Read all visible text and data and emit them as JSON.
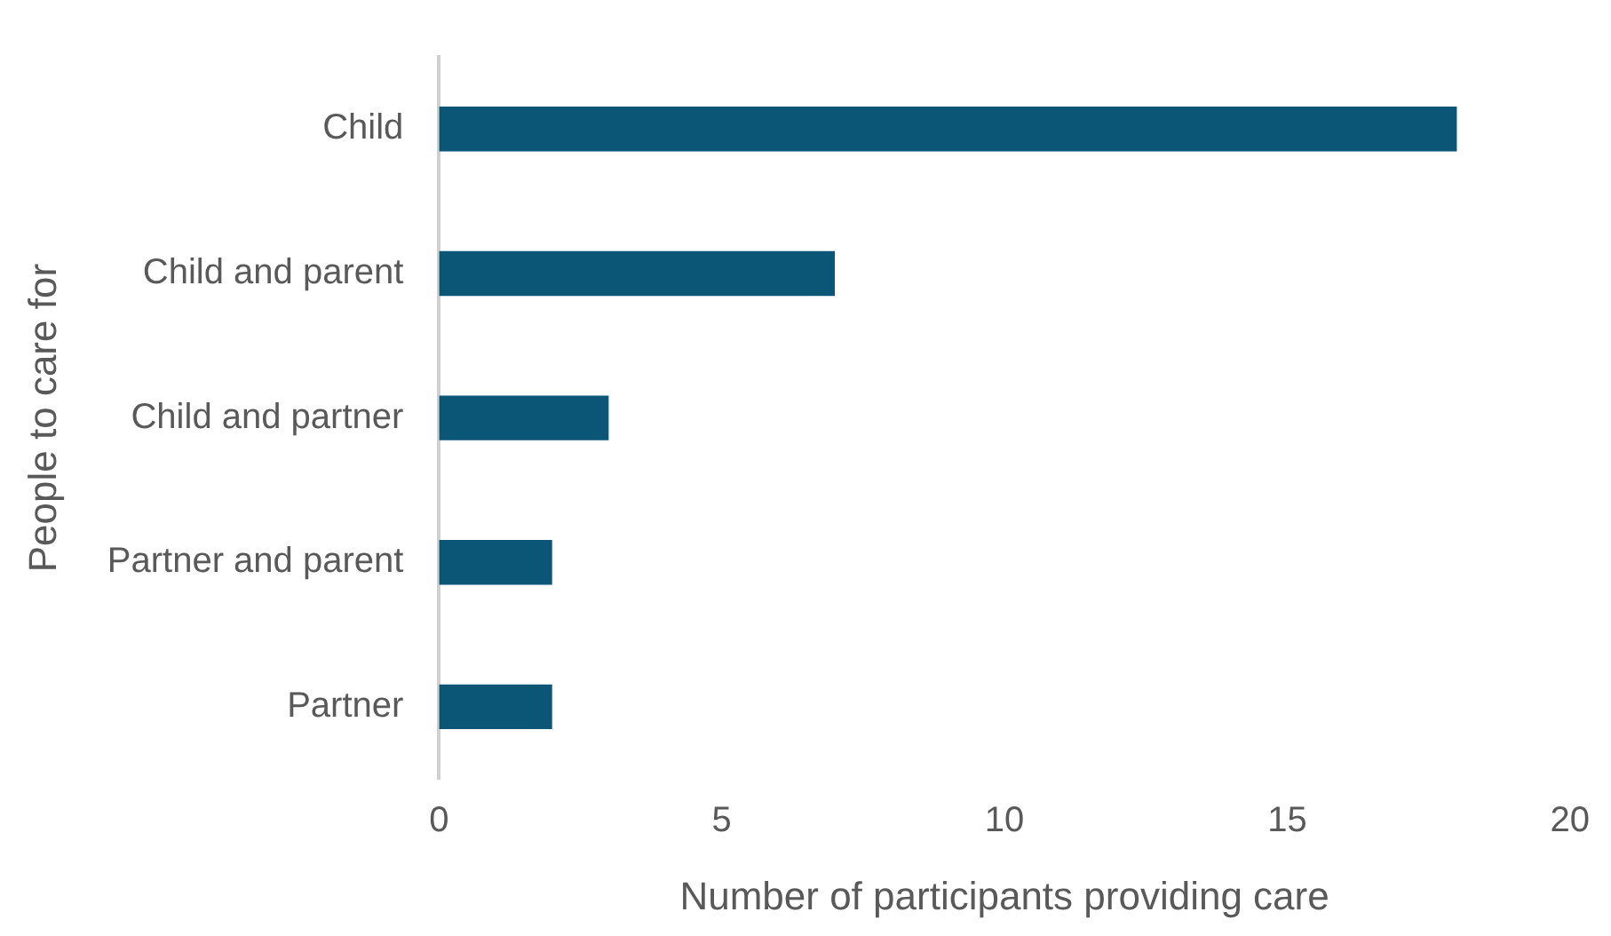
{
  "chart_data": {
    "type": "bar",
    "orientation": "horizontal",
    "xlabel": "Number of participants providing care",
    "ylabel": "People to care for",
    "categories": [
      "Child",
      "Child and parent",
      "Child and partner",
      "Partner and parent",
      "Partner"
    ],
    "values": [
      18,
      7,
      3,
      2,
      2
    ],
    "color": "#0b5576",
    "xlim": [
      0,
      20
    ],
    "xticks": [
      0,
      5,
      10,
      15,
      20
    ]
  }
}
